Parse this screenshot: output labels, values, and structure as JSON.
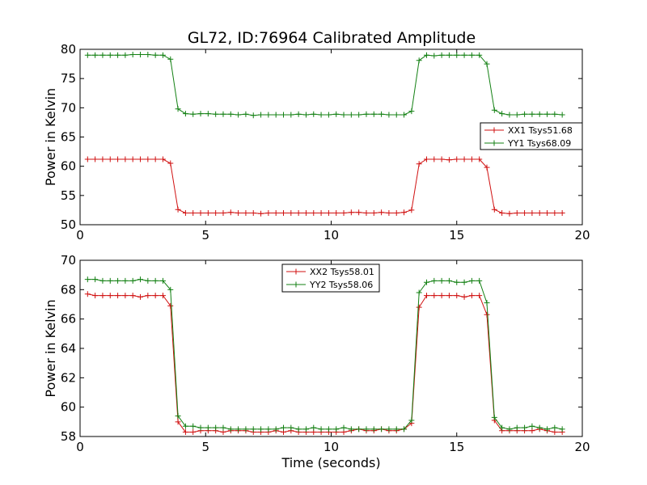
{
  "title": "GL72, ID:76964 Calibrated Amplitude",
  "chart_data": [
    {
      "type": "line",
      "title": "GL72, ID:76964 Calibrated Amplitude",
      "xlabel": "",
      "ylabel": "Power in Kelvin",
      "xlim": [
        0,
        20
      ],
      "ylim": [
        50,
        80
      ],
      "x_ticks": [
        "0",
        "5",
        "10",
        "15",
        "20"
      ],
      "y_ticks": [
        "50",
        "55",
        "60",
        "65",
        "70",
        "75",
        "80"
      ],
      "legend_position": "right",
      "grid": false,
      "x": [
        0.3,
        0.6,
        0.9,
        1.2,
        1.5,
        1.8,
        2.1,
        2.4,
        2.7,
        3.0,
        3.3,
        3.6,
        3.9,
        4.2,
        4.5,
        4.8,
        5.1,
        5.4,
        5.7,
        6.0,
        6.3,
        6.6,
        6.9,
        7.2,
        7.5,
        7.8,
        8.1,
        8.4,
        8.7,
        9.0,
        9.3,
        9.6,
        9.9,
        10.2,
        10.5,
        10.8,
        11.1,
        11.4,
        11.7,
        12.0,
        12.3,
        12.6,
        12.9,
        13.2,
        13.5,
        13.8,
        14.1,
        14.4,
        14.7,
        15.0,
        15.3,
        15.6,
        15.9,
        16.2,
        16.5,
        16.8,
        17.1,
        17.4,
        17.7,
        18.0,
        18.3,
        18.6,
        18.9,
        19.2
      ],
      "series": [
        {
          "name": "XX1 Tsys51.68",
          "color": "#d01010",
          "values": [
            61.2,
            61.2,
            61.2,
            61.2,
            61.2,
            61.2,
            61.2,
            61.2,
            61.2,
            61.2,
            61.2,
            60.5,
            52.6,
            52.0,
            52.0,
            52.0,
            52.0,
            52.0,
            52.0,
            52.1,
            52.0,
            52.0,
            52.0,
            51.9,
            52.0,
            52.0,
            52.0,
            52.0,
            52.0,
            52.0,
            52.0,
            52.0,
            52.0,
            52.0,
            52.0,
            52.1,
            52.1,
            52.0,
            52.0,
            52.1,
            52.0,
            52.0,
            52.1,
            52.5,
            60.4,
            61.2,
            61.2,
            61.2,
            61.1,
            61.2,
            61.2,
            61.2,
            61.2,
            59.8,
            52.6,
            52.0,
            51.9,
            52.0,
            52.0,
            52.0,
            52.0,
            52.0,
            52.0,
            52.0
          ]
        },
        {
          "name": "YY1 Tsys68.09",
          "color": "#138013",
          "values": [
            79.0,
            79.0,
            79.0,
            79.0,
            79.0,
            79.0,
            79.1,
            79.1,
            79.1,
            79.0,
            79.0,
            78.3,
            69.8,
            69.0,
            68.9,
            69.0,
            69.0,
            68.9,
            68.9,
            68.9,
            68.8,
            68.9,
            68.7,
            68.8,
            68.8,
            68.8,
            68.8,
            68.8,
            68.9,
            68.8,
            68.9,
            68.8,
            68.8,
            68.9,
            68.8,
            68.8,
            68.8,
            68.9,
            68.9,
            68.9,
            68.8,
            68.8,
            68.8,
            69.4,
            78.1,
            79.0,
            78.9,
            79.0,
            79.0,
            79.0,
            79.0,
            79.0,
            79.0,
            77.5,
            69.6,
            69.0,
            68.8,
            68.8,
            68.9,
            68.9,
            68.9,
            68.9,
            68.9,
            68.8
          ]
        }
      ]
    },
    {
      "type": "line",
      "title": "",
      "xlabel": "Time (seconds)",
      "ylabel": "Power in Kelvin",
      "xlim": [
        0,
        20
      ],
      "ylim": [
        58,
        70
      ],
      "x_ticks": [
        "0",
        "5",
        "10",
        "15",
        "20"
      ],
      "y_ticks": [
        "58",
        "60",
        "62",
        "64",
        "66",
        "68",
        "70"
      ],
      "legend_position": "upper-center",
      "grid": false,
      "x": [
        0.3,
        0.6,
        0.9,
        1.2,
        1.5,
        1.8,
        2.1,
        2.4,
        2.7,
        3.0,
        3.3,
        3.6,
        3.9,
        4.2,
        4.5,
        4.8,
        5.1,
        5.4,
        5.7,
        6.0,
        6.3,
        6.6,
        6.9,
        7.2,
        7.5,
        7.8,
        8.1,
        8.4,
        8.7,
        9.0,
        9.3,
        9.6,
        9.9,
        10.2,
        10.5,
        10.8,
        11.1,
        11.4,
        11.7,
        12.0,
        12.3,
        12.6,
        12.9,
        13.2,
        13.5,
        13.8,
        14.1,
        14.4,
        14.7,
        15.0,
        15.3,
        15.6,
        15.9,
        16.2,
        16.5,
        16.8,
        17.1,
        17.4,
        17.7,
        18.0,
        18.3,
        18.6,
        18.9,
        19.2
      ],
      "series": [
        {
          "name": "XX2 Tsys58.01",
          "color": "#d01010",
          "values": [
            67.7,
            67.6,
            67.6,
            67.6,
            67.6,
            67.6,
            67.6,
            67.5,
            67.6,
            67.6,
            67.6,
            66.9,
            59.0,
            58.3,
            58.3,
            58.4,
            58.4,
            58.4,
            58.3,
            58.4,
            58.4,
            58.4,
            58.3,
            58.3,
            58.3,
            58.4,
            58.3,
            58.4,
            58.3,
            58.3,
            58.3,
            58.3,
            58.3,
            58.3,
            58.3,
            58.4,
            58.5,
            58.4,
            58.4,
            58.5,
            58.4,
            58.4,
            58.5,
            58.9,
            66.8,
            67.6,
            67.6,
            67.6,
            67.6,
            67.6,
            67.5,
            67.6,
            67.6,
            66.3,
            59.1,
            58.4,
            58.4,
            58.4,
            58.4,
            58.4,
            58.5,
            58.4,
            58.3,
            58.3
          ]
        },
        {
          "name": "YY2 Tsys58.06",
          "color": "#138013",
          "values": [
            68.7,
            68.7,
            68.6,
            68.6,
            68.6,
            68.6,
            68.6,
            68.7,
            68.6,
            68.6,
            68.6,
            68.0,
            59.4,
            58.7,
            58.7,
            58.6,
            58.6,
            58.6,
            58.6,
            58.5,
            58.5,
            58.5,
            58.5,
            58.5,
            58.5,
            58.5,
            58.6,
            58.6,
            58.5,
            58.5,
            58.6,
            58.5,
            58.5,
            58.5,
            58.6,
            58.5,
            58.5,
            58.5,
            58.5,
            58.5,
            58.5,
            58.5,
            58.5,
            59.1,
            67.8,
            68.5,
            68.6,
            68.6,
            68.6,
            68.5,
            68.5,
            68.6,
            68.6,
            67.1,
            59.3,
            58.6,
            58.5,
            58.6,
            58.6,
            58.7,
            58.6,
            58.5,
            58.6,
            58.5
          ]
        }
      ]
    }
  ]
}
